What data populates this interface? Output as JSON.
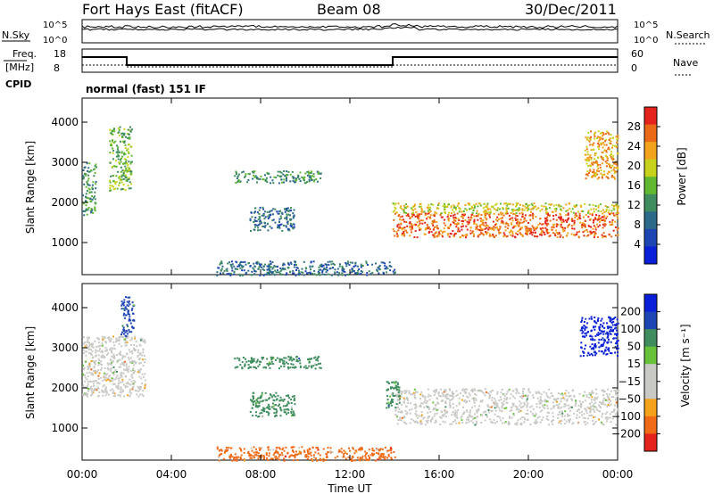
{
  "header": {
    "station": "Fort Hays East (fitACF)",
    "beam": "Beam 08",
    "date": "30/Dec/2011"
  },
  "top_panels": {
    "nsky_label": "N.Sky",
    "nsky_ticks": [
      "10^5",
      "10^0"
    ],
    "nsearch_label": "N.Search",
    "nsearch_ticks": [
      "10^5",
      "10^0"
    ],
    "freq_label": "Freq.",
    "freq_unit": "[MHz]",
    "freq_ticks": [
      "18",
      "8"
    ],
    "nave_label": "Nave",
    "nave_ticks": [
      "60",
      "0"
    ],
    "cpid_label": "CPID",
    "cpid_text": "normal (fast) 151 IF"
  },
  "colors": {
    "power_bar": [
      "#0a1fd8",
      "#1e45b4",
      "#2d6a8a",
      "#3f8d5f",
      "#62b830",
      "#c7d21c",
      "#f0a31b",
      "#ea6a17",
      "#e4231c"
    ],
    "velocity_bar": [
      "#e4231c",
      "#ef6b18",
      "#f4a21a",
      "#c9c9c5",
      "#c9c9c5",
      "#67c23a",
      "#3f8d5f",
      "#1e45b4",
      "#0a1fd8"
    ]
  },
  "chart_data": [
    {
      "type": "heatmap",
      "title": "",
      "xlabel": "Time UT",
      "ylabel": "Slant Range [km]",
      "colorbar_label": "Power [dB]",
      "colorbar_ticks": [
        "4",
        "8",
        "12",
        "16",
        "20",
        "24",
        "28"
      ],
      "x_ticks": [
        "00:00",
        "04:00",
        "08:00",
        "12:00",
        "16:00",
        "20:00",
        "00:00"
      ],
      "y_ticks": [
        "1000",
        "2000",
        "3000",
        "4000"
      ],
      "xlim": [
        0,
        24
      ],
      "ylim": [
        200,
        4600
      ],
      "regions": [
        {
          "t0": 0.0,
          "t1": 0.6,
          "r0": 1700,
          "r1": 3000,
          "level": 3
        },
        {
          "t0": 1.2,
          "t1": 2.2,
          "r0": 2300,
          "r1": 3900,
          "level": 4
        },
        {
          "t0": 6.8,
          "t1": 10.7,
          "r0": 2500,
          "r1": 2800,
          "level": 3
        },
        {
          "t0": 7.5,
          "t1": 9.5,
          "r0": 1300,
          "r1": 1900,
          "level": 2
        },
        {
          "t0": 13.9,
          "t1": 24.0,
          "r0": 1150,
          "r1": 1750,
          "level": 7
        },
        {
          "t0": 13.9,
          "t1": 24.0,
          "r0": 1750,
          "r1": 2000,
          "level": 5
        },
        {
          "t0": 22.5,
          "t1": 24.0,
          "r0": 2600,
          "r1": 3800,
          "level": 6
        },
        {
          "t0": 6.0,
          "t1": 14.0,
          "r0": 200,
          "r1": 550,
          "level": 2
        }
      ]
    },
    {
      "type": "heatmap",
      "title": "",
      "xlabel": "Time UT",
      "ylabel": "Slant Range [km]",
      "colorbar_label": "Velocity [m s⁻¹]",
      "colorbar_ticks": [
        "200",
        "100",
        "50",
        "15",
        "−15",
        "−50",
        "−100",
        "−200"
      ],
      "x_ticks": [
        "00:00",
        "04:00",
        "08:00",
        "12:00",
        "16:00",
        "20:00",
        "00:00"
      ],
      "y_ticks": [
        "1000",
        "2000",
        "3000",
        "4000"
      ],
      "xlim": [
        0,
        24
      ],
      "ylim": [
        200,
        4600
      ],
      "regions": [
        {
          "t0": 0.0,
          "t1": 2.8,
          "r0": 1800,
          "r1": 3300,
          "level": 0
        },
        {
          "t0": 1.7,
          "t1": 2.3,
          "r0": 3300,
          "r1": 4300,
          "level": 100
        },
        {
          "t0": 6.8,
          "t1": 10.7,
          "r0": 2500,
          "r1": 2800,
          "level": 50
        },
        {
          "t0": 7.5,
          "t1": 9.5,
          "r0": 1300,
          "r1": 1900,
          "level": 50
        },
        {
          "t0": 14.0,
          "t1": 24.0,
          "r0": 1100,
          "r1": 2000,
          "level": 0
        },
        {
          "t0": 13.6,
          "t1": 14.2,
          "r0": 1500,
          "r1": 2200,
          "level": 50
        },
        {
          "t0": 22.3,
          "t1": 24.0,
          "r0": 2800,
          "r1": 3800,
          "level": 200
        },
        {
          "t0": 6.0,
          "t1": 14.0,
          "r0": 200,
          "r1": 550,
          "level": -50
        }
      ]
    }
  ]
}
